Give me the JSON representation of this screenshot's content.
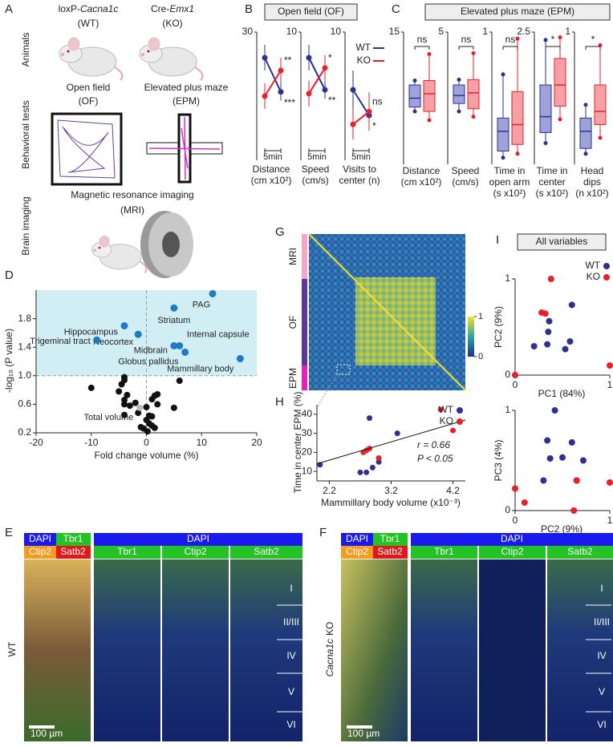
{
  "panel_letters": {
    "a": "A",
    "b": "B",
    "c": "C",
    "d": "D",
    "e": "E",
    "f": "F",
    "g": "G",
    "h": "H",
    "i": "I"
  },
  "panel_a": {
    "row_labels": [
      "Animals",
      "Behavioral tests",
      "Brain imaging"
    ],
    "wt": {
      "prefix": "loxP-",
      "gene": "Cacna1c",
      "tag": "(WT)"
    },
    "ko": {
      "prefix": "Cre-",
      "gene": "Emx1",
      "tag": "(KO)"
    },
    "open_field": {
      "name": "Open field",
      "abbr": "(OF)"
    },
    "plus_maze": {
      "name": "Elevated plus maze",
      "abbr": "(EPM)"
    },
    "mri": {
      "name": "Magnetic resonance imaging",
      "abbr": "(MRI)"
    }
  },
  "legend": [
    {
      "name": "WT",
      "color": "#2e3192"
    },
    {
      "name": "KO",
      "color": "#e8202a"
    }
  ],
  "panel_b": {
    "title": "Open field (OF)",
    "scale_bar": "5min",
    "plots": [
      {
        "label": [
          "Distance",
          "(cm x10²)"
        ],
        "ylim": [
          0,
          30
        ],
        "yticks": [
          30
        ],
        "series": [
          {
            "values": [
              24,
              16
            ],
            "errors": [
              3,
              2
            ]
          },
          {
            "values": [
              15,
              21
            ],
            "errors": [
              3,
              3
            ]
          }
        ],
        "sig": [
          "**",
          "***"
        ]
      },
      {
        "label": [
          "Speed",
          "(cm/s)"
        ],
        "ylim": [
          0,
          10
        ],
        "yticks": [
          10
        ],
        "series": [
          {
            "values": [
              8,
              5.5
            ],
            "errors": [
              1,
              0.7
            ]
          },
          {
            "values": [
              5.2,
              7.2
            ],
            "errors": [
              1,
              1
            ]
          }
        ],
        "sig": [
          "*",
          "**"
        ]
      },
      {
        "label": [
          "Visits to",
          "center (n)"
        ],
        "ylim": [
          0,
          10
        ],
        "yticks": [
          10
        ],
        "series": [
          {
            "values": [
              5.5,
              3.5
            ],
            "errors": [
              1.5,
              0.8
            ]
          },
          {
            "values": [
              2.8,
              3.8
            ],
            "errors": [
              1.2,
              1.5
            ]
          }
        ],
        "sig": [
          "ns",
          "*"
        ]
      }
    ]
  },
  "panel_c": {
    "title": "Elevated plus maze (EPM)",
    "plots": [
      {
        "label": [
          "Distance",
          "(cm x10²)"
        ],
        "ylim": [
          0,
          15
        ],
        "yticks": [
          15
        ],
        "boxes": [
          {
            "min": 6,
            "q1": 6.5,
            "median": 7.5,
            "q3": 9,
            "max": 9.5
          },
          {
            "min": 5,
            "q1": 6,
            "median": 8,
            "q3": 9.5,
            "max": 12.5
          }
        ],
        "sig": "ns"
      },
      {
        "label": [
          "Speed",
          "(cm/s)"
        ],
        "ylim": [
          0,
          5
        ],
        "yticks": [
          5
        ],
        "boxes": [
          {
            "min": 2,
            "q1": 2.3,
            "median": 2.6,
            "q3": 3,
            "max": 3.2
          },
          {
            "min": 1.8,
            "q1": 2.1,
            "median": 2.7,
            "q3": 3.2,
            "max": 4.2
          }
        ],
        "sig": "ns"
      },
      {
        "label": [
          "Time in",
          "open arm",
          "(s x10²)"
        ],
        "ylim": [
          0,
          1
        ],
        "yticks": [
          1
        ],
        "boxes": [
          {
            "min": 0.05,
            "q1": 0.1,
            "median": 0.25,
            "q3": 0.35,
            "max": 0.68
          },
          {
            "min": 0.08,
            "q1": 0.15,
            "median": 0.3,
            "q3": 0.55,
            "max": 0.95
          }
        ],
        "sig": "ns"
      },
      {
        "label": [
          "Time in",
          "center",
          "(s x10²)"
        ],
        "ylim": [
          0,
          2.5
        ],
        "yticks": [
          2.5
        ],
        "boxes": [
          {
            "min": 0.4,
            "q1": 0.6,
            "median": 0.9,
            "q3": 1.5,
            "max": 2.35
          },
          {
            "min": 0.85,
            "q1": 1.1,
            "median": 1.5,
            "q3": 2,
            "max": 2.4
          }
        ],
        "sig": "*"
      },
      {
        "label": [
          "Head",
          "dips",
          "(n x10²)"
        ],
        "ylim": [
          0,
          1
        ],
        "yticks": [
          1
        ],
        "boxes": [
          {
            "min": 0.08,
            "q1": 0.12,
            "median": 0.25,
            "q3": 0.35,
            "max": 0.45
          },
          {
            "min": 0.2,
            "q1": 0.3,
            "median": 0.4,
            "q3": 0.6,
            "max": 0.9
          }
        ],
        "sig": "*"
      }
    ]
  },
  "panel_d": {
    "xlabel": "Fold change volume (%)",
    "ylabel": "-log₁₀ (P value)",
    "xlim": [
      -20,
      20
    ],
    "ylim": [
      0.2,
      2.2
    ],
    "xticks": [
      -20,
      -10,
      0,
      10,
      20
    ],
    "yticks": [
      0.2,
      0.6,
      {
        "value": 1,
        "label": "1.0"
      },
      1.4,
      1.8
    ],
    "threshold": 1,
    "significant": [
      {
        "name": "PAG",
        "x": 12,
        "y": 2.15
      },
      {
        "name": "Striatum",
        "x": 5,
        "y": 1.95
      },
      {
        "name": "Hippocampus",
        "x": -4,
        "y": 1.7
      },
      {
        "name": "Neocortex",
        "x": -1.5,
        "y": 1.58
      },
      {
        "name": "Trigeminal tract",
        "x": -9,
        "y": 1.5
      },
      {
        "name": "Midbrain",
        "x": 5,
        "y": 1.42
      },
      {
        "name": "Internal capsule",
        "x": 6,
        "y": 1.42
      },
      {
        "name": "Globus pallidus",
        "x": 7,
        "y": 1.33
      },
      {
        "name": "Mammillary body",
        "x": 17,
        "y": 1.24
      }
    ],
    "others": {
      "x": [
        -4,
        -4,
        -4.5,
        -10,
        -5,
        -3.5,
        -4,
        -2,
        -4,
        -3,
        0,
        -1.5,
        -4,
        1.5,
        2,
        1,
        2,
        6,
        5,
        0,
        0.5,
        1,
        0.5,
        1,
        -0.5,
        -1,
        1.5,
        0.2
      ],
      "y": [
        0.98,
        0.94,
        0.88,
        0.83,
        0.78,
        0.73,
        0.66,
        0.62,
        0.6,
        0.58,
        0.56,
        0.48,
        0.45,
        0.72,
        0.74,
        0.67,
        0.6,
        0.93,
        0.55,
        0.38,
        0.44,
        0.43,
        0.33,
        0.3,
        0.26,
        0.28,
        0.27,
        0.22
      ]
    },
    "total_volume": {
      "name": "Total volume",
      "x": -1.2,
      "y": 0.55
    }
  },
  "panel_g": {
    "groups": [
      "MRI",
      "OF",
      "EPM"
    ],
    "colorbar_ticks": [
      0,
      1
    ]
  },
  "panel_h": {
    "xlabel": "Mammillary body volume (x10⁻³)",
    "ylabel": "Time in center EPM (%)",
    "xlim": [
      2,
      4.4
    ],
    "ylim": [
      5,
      45
    ],
    "xticks": [
      2.2,
      3.2,
      4.2
    ],
    "yticks": [
      10,
      20,
      30,
      40
    ],
    "series": [
      {
        "x": [
          2.05,
          2.7,
          2.8,
          2.85,
          3.0,
          3.3,
          2.9
        ],
        "y": [
          13.5,
          9.5,
          9.5,
          38,
          15,
          30,
          12
        ]
      },
      {
        "x": [
          2.8,
          2.85,
          3.0,
          4.0,
          4.2,
          2.75
        ],
        "y": [
          21,
          22,
          17,
          42.5,
          31.5,
          20
        ]
      }
    ],
    "fit": {
      "x": [
        2,
        4.4
      ],
      "y": [
        14,
        37
      ]
    },
    "stats": [
      "r = 0.66",
      "P < 0.05"
    ]
  },
  "panel_i": {
    "title": "All variables",
    "plots": [
      {
        "xlabel": "PC1 (84%)",
        "ylabel": "PC2 (9%)",
        "xlim": [
          0,
          1
        ],
        "ylim": [
          0,
          1
        ],
        "xticks": [
          0,
          1
        ],
        "yticks": [
          0,
          1
        ],
        "series": [
          {
            "x": [
              0.2,
              0.35,
              0.36,
              0.34,
              0.53,
              0.58,
              0.6
            ],
            "y": [
              0.3,
              0.45,
              0.56,
              0.32,
              0.27,
              0.35,
              0.73
            ]
          },
          {
            "x": [
              0,
              0.28,
              0.32,
              0.38,
              1
            ],
            "y": [
              0,
              0.65,
              0.64,
              1,
              0.1
            ]
          }
        ]
      },
      {
        "xlabel": "PC2 (9%)",
        "ylabel": "PC3 (4%)",
        "xlim": [
          0,
          1
        ],
        "ylim": [
          0,
          1
        ],
        "xticks": [
          0,
          1
        ],
        "yticks": [
          0,
          1
        ],
        "series": [
          {
            "x": [
              0.3,
              0.34,
              0.37,
              0.42,
              0.5,
              0.6,
              0.65,
              0.72
            ],
            "y": [
              0.3,
              0.7,
              0.52,
              1,
              0.53,
              0.68,
              0.3,
              0.5
            ]
          },
          {
            "x": [
              0,
              0.1,
              0.65,
              0.62,
              1
            ],
            "y": [
              0.22,
              0.08,
              0.3,
              0,
              0.28
            ]
          }
        ]
      }
    ]
  },
  "histology": {
    "merge_top": [
      "DAPI",
      "Tbr1"
    ],
    "merge_bottom": [
      "Ctip2",
      "Satb2"
    ],
    "dapi": "DAPI",
    "markers": [
      "Tbr1",
      "Ctip2",
      "Satb2"
    ],
    "layers": [
      "I",
      "II/III",
      "IV",
      "V",
      "VI"
    ],
    "scale": "100 µm"
  },
  "panel_e": {
    "side_label": "WT"
  },
  "panel_f": {
    "side_gene": "Cacna1c",
    "side_rest": "KO"
  }
}
